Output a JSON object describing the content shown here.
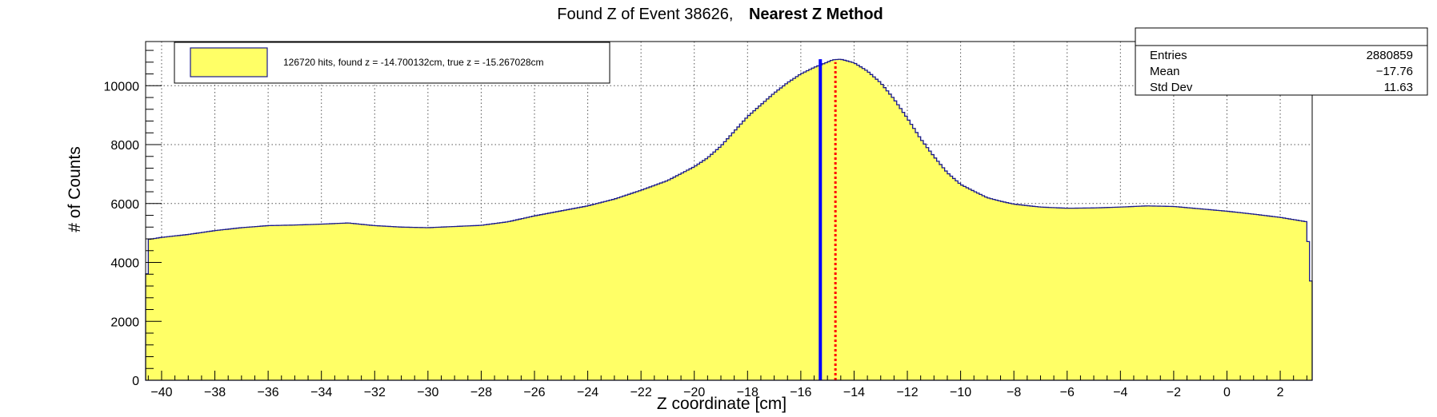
{
  "chart_data": {
    "type": "histogram",
    "title_prefix": "Found Z of Event 38626,",
    "title_method": "Nearest Z Method",
    "xlabel": "Z coordinate [cm]",
    "ylabel": "# of Counts",
    "xlim": [
      -40.6,
      3.2
    ],
    "ylim": [
      0,
      11500
    ],
    "x_ticks": [
      -40,
      -38,
      -36,
      -34,
      -32,
      -30,
      -28,
      -26,
      -24,
      -22,
      -20,
      -18,
      -16,
      -14,
      -12,
      -10,
      -8,
      -6,
      -4,
      -2,
      0,
      2
    ],
    "y_ticks": [
      0,
      2000,
      4000,
      6000,
      8000,
      10000
    ],
    "x_tick_labels": [
      "−40",
      "−38",
      "−36",
      "−34",
      "−32",
      "−30",
      "−28",
      "−26",
      "−24",
      "−22",
      "−20",
      "−18",
      "−16",
      "−14",
      "−12",
      "−10",
      "−8",
      "−6",
      "−4",
      "−2",
      "0",
      "2"
    ],
    "y_tick_labels": [
      "0",
      "2000",
      "4000",
      "6000",
      "8000",
      "10000"
    ],
    "grid": true,
    "fill_color": "#ffff66",
    "line_color": "#1a1a8c",
    "histogram_profile": [
      [
        -40.6,
        2450
      ],
      [
        -40.5,
        4780
      ],
      [
        -40.0,
        4850
      ],
      [
        -39.0,
        4950
      ],
      [
        -38.0,
        5080
      ],
      [
        -37.0,
        5180
      ],
      [
        -36.0,
        5250
      ],
      [
        -35.0,
        5270
      ],
      [
        -34.0,
        5300
      ],
      [
        -33.0,
        5340
      ],
      [
        -32.0,
        5250
      ],
      [
        -31.0,
        5200
      ],
      [
        -30.0,
        5180
      ],
      [
        -29.0,
        5220
      ],
      [
        -28.0,
        5260
      ],
      [
        -27.0,
        5380
      ],
      [
        -26.0,
        5580
      ],
      [
        -25.0,
        5750
      ],
      [
        -24.0,
        5920
      ],
      [
        -23.0,
        6150
      ],
      [
        -22.0,
        6450
      ],
      [
        -21.0,
        6780
      ],
      [
        -20.0,
        7250
      ],
      [
        -19.5,
        7550
      ],
      [
        -19.0,
        7950
      ],
      [
        -18.5,
        8450
      ],
      [
        -18.0,
        8950
      ],
      [
        -17.5,
        9350
      ],
      [
        -17.0,
        9750
      ],
      [
        -16.5,
        10100
      ],
      [
        -16.0,
        10400
      ],
      [
        -15.5,
        10620
      ],
      [
        -15.0,
        10800
      ],
      [
        -14.8,
        10880
      ],
      [
        -14.5,
        10900
      ],
      [
        -14.0,
        10780
      ],
      [
        -13.5,
        10500
      ],
      [
        -13.0,
        10100
      ],
      [
        -12.5,
        9550
      ],
      [
        -12.0,
        8900
      ],
      [
        -11.5,
        8200
      ],
      [
        -11.0,
        7600
      ],
      [
        -10.5,
        7050
      ],
      [
        -10.0,
        6650
      ],
      [
        -9.5,
        6420
      ],
      [
        -9.0,
        6200
      ],
      [
        -8.5,
        6080
      ],
      [
        -8.0,
        5980
      ],
      [
        -7.0,
        5880
      ],
      [
        -6.0,
        5840
      ],
      [
        -5.0,
        5850
      ],
      [
        -4.0,
        5880
      ],
      [
        -3.0,
        5920
      ],
      [
        -2.0,
        5900
      ],
      [
        -1.0,
        5820
      ],
      [
        0.0,
        5740
      ],
      [
        1.0,
        5640
      ],
      [
        2.0,
        5530
      ],
      [
        3.0,
        5380
      ],
      [
        3.2,
        2700
      ]
    ],
    "true_z": -15.267028,
    "found_z": -14.700132,
    "true_z_color": "#0000ff",
    "found_z_color": "#ff0000",
    "legend": {
      "label": "126720 hits, found z = -14.700132cm, true z = -15.267028cm",
      "position": "top-left"
    },
    "stats_box": {
      "position": "top-right",
      "entries_label": "Entries",
      "entries_value": "2880859",
      "mean_label": "Mean",
      "mean_value": "−17.76",
      "stddev_label": "Std Dev",
      "stddev_value": "11.63"
    }
  }
}
